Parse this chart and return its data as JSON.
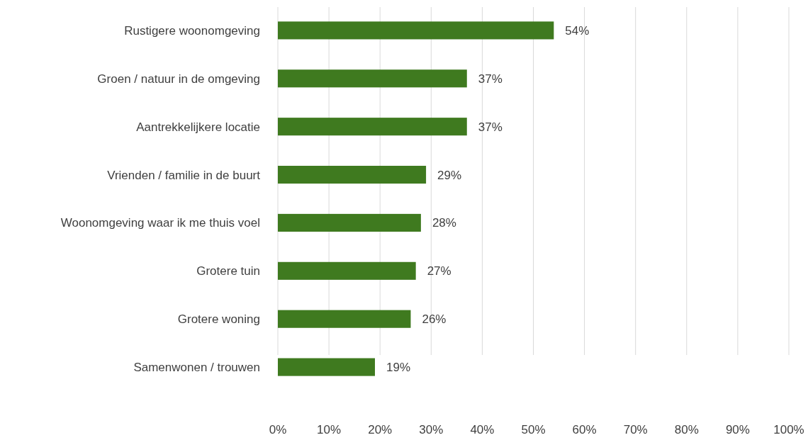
{
  "chart_data": {
    "type": "bar",
    "orientation": "horizontal",
    "categories": [
      "Rustigere woonomgeving",
      "Groen / natuur in de omgeving",
      "Aantrekkelijkere locatie",
      "Vrienden / familie in de buurt",
      "Woonomgeving waar ik me thuis voel",
      "Grotere tuin",
      "Grotere woning",
      "Samenwonen / trouwen"
    ],
    "values": [
      54,
      37,
      37,
      29,
      28,
      27,
      26,
      19
    ],
    "value_labels": [
      "54%",
      "37%",
      "37%",
      "29%",
      "28%",
      "27%",
      "26%",
      "19%"
    ],
    "color": "#3f7a1f",
    "xlim": [
      0,
      100
    ],
    "xticks": [
      {
        "value": 0,
        "label": "0%"
      },
      {
        "value": 10,
        "label": "10%"
      },
      {
        "value": 20,
        "label": "20%"
      },
      {
        "value": 30,
        "label": "30%"
      },
      {
        "value": 40,
        "label": "40%"
      },
      {
        "value": 50,
        "label": "50%"
      },
      {
        "value": 60,
        "label": "60%"
      },
      {
        "value": 70,
        "label": "70%"
      },
      {
        "value": 80,
        "label": "80%"
      },
      {
        "value": 90,
        "label": "90%"
      },
      {
        "value": 100,
        "label": "100%"
      }
    ],
    "grid": "x"
  }
}
